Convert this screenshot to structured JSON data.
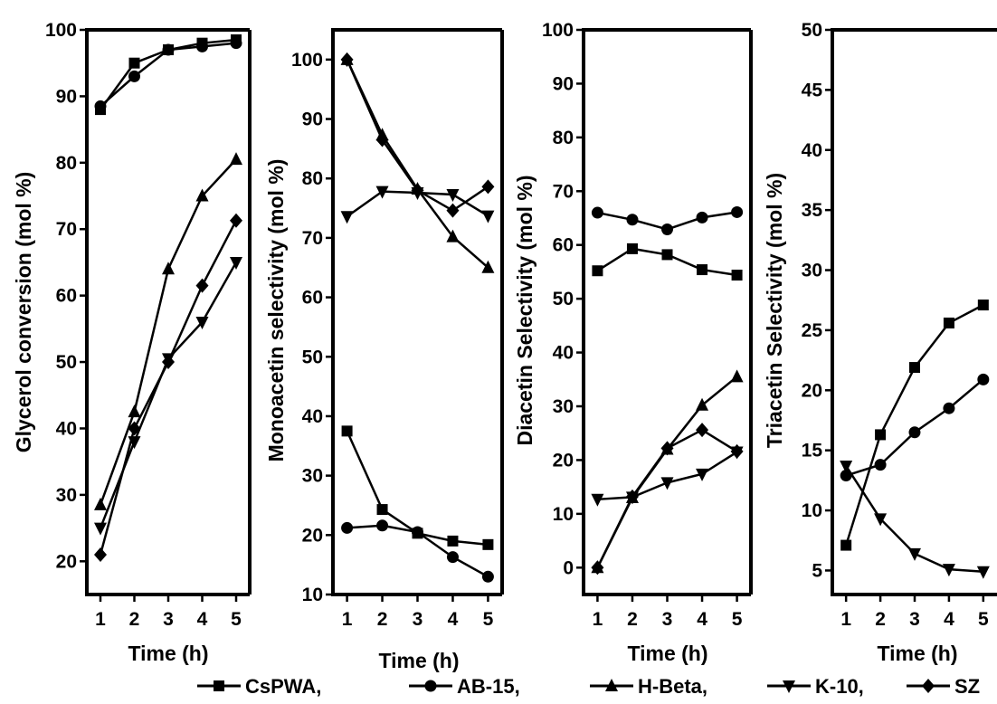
{
  "chart_data": [
    {
      "type": "line",
      "panel": "glycerol-conversion",
      "title": "",
      "xlabel": "Time (h)",
      "ylabel": "Glycerol conversion (mol %)",
      "x": [
        1,
        2,
        3,
        4,
        5
      ],
      "xlim": [
        0.6,
        5.4
      ],
      "ylim": [
        15,
        100
      ],
      "yticks": [
        20,
        30,
        40,
        50,
        60,
        70,
        80,
        90,
        100
      ],
      "series": [
        {
          "name": "CsPWA",
          "marker": "square",
          "values": [
            88,
            95,
            97,
            98,
            98.5
          ]
        },
        {
          "name": "AB-15",
          "marker": "circle",
          "values": [
            88.5,
            93,
            97,
            97.5,
            98
          ]
        },
        {
          "name": "H-Beta",
          "marker": "triangle-up",
          "values": [
            28.5,
            42.5,
            64,
            75,
            80.5
          ]
        },
        {
          "name": "K-10",
          "marker": "triangle-down",
          "values": [
            25,
            38,
            50.5,
            56,
            65
          ]
        },
        {
          "name": "SZ",
          "marker": "diamond",
          "values": [
            21,
            40,
            50,
            61.5,
            71.3
          ]
        }
      ]
    },
    {
      "type": "line",
      "panel": "monoacetin-selectivity",
      "title": "",
      "xlabel": "Time (h)",
      "ylabel": "Monoacetin selectivity (mol %)",
      "x": [
        1,
        2,
        3,
        4,
        5
      ],
      "xlim": [
        0.6,
        5.4
      ],
      "ylim": [
        10,
        105
      ],
      "yticks": [
        10,
        20,
        30,
        40,
        50,
        60,
        70,
        80,
        90,
        100
      ],
      "series": [
        {
          "name": "CsPWA",
          "marker": "square",
          "values": [
            37.5,
            24.3,
            20.3,
            19,
            18.4
          ]
        },
        {
          "name": "AB-15",
          "marker": "circle",
          "values": [
            21.2,
            21.6,
            20.5,
            16.3,
            13
          ]
        },
        {
          "name": "H-Beta",
          "marker": "triangle-up",
          "values": [
            100,
            87.3,
            78.2,
            70.2,
            65
          ]
        },
        {
          "name": "K-10",
          "marker": "triangle-down",
          "values": [
            73.6,
            77.8,
            77.6,
            77.3,
            73.7
          ]
        },
        {
          "name": "SZ",
          "marker": "diamond",
          "values": [
            100,
            86.5,
            78,
            74.6,
            78.6
          ]
        }
      ]
    },
    {
      "type": "line",
      "panel": "diacetin-selectivity",
      "title": "",
      "xlabel": "Time (h)",
      "ylabel": "Diacetin Selectivity (mol %)",
      "x": [
        1,
        2,
        3,
        4,
        5
      ],
      "xlim": [
        0.6,
        5.4
      ],
      "ylim": [
        -5,
        100
      ],
      "yticks": [
        0,
        10,
        20,
        30,
        40,
        50,
        60,
        70,
        80,
        90,
        100
      ],
      "series": [
        {
          "name": "CsPWA",
          "marker": "square",
          "values": [
            55.2,
            59.3,
            58.2,
            55.4,
            54.4
          ]
        },
        {
          "name": "AB-15",
          "marker": "circle",
          "values": [
            66,
            64.7,
            62.9,
            65.1,
            66.1
          ]
        },
        {
          "name": "H-Beta",
          "marker": "triangle-up",
          "values": [
            0,
            13,
            22,
            30.2,
            35.5
          ]
        },
        {
          "name": "K-10",
          "marker": "triangle-down",
          "values": [
            12.7,
            13.1,
            15.8,
            17.4,
            21.5
          ]
        },
        {
          "name": "SZ",
          "marker": "diamond",
          "values": [
            0,
            13.2,
            22.2,
            25.6,
            21.6
          ]
        }
      ]
    },
    {
      "type": "line",
      "panel": "triacetin-selectivity",
      "title": "",
      "xlabel": "Time (h)",
      "ylabel": "Triacetin Selectivity (mol %)",
      "x": [
        1,
        2,
        3,
        4,
        5
      ],
      "xlim": [
        0.6,
        5.4
      ],
      "ylim": [
        3,
        50
      ],
      "yticks": [
        5,
        10,
        15,
        20,
        25,
        30,
        35,
        40,
        45,
        50
      ],
      "series": [
        {
          "name": "CsPWA",
          "marker": "square",
          "values": [
            7.1,
            16.3,
            21.9,
            25.6,
            27.1
          ]
        },
        {
          "name": "AB-15",
          "marker": "circle",
          "values": [
            12.9,
            13.8,
            16.5,
            18.5,
            20.9
          ]
        },
        {
          "name": "K-10",
          "marker": "triangle-down",
          "values": [
            13.7,
            9.3,
            6.4,
            5.1,
            4.9
          ]
        }
      ]
    }
  ],
  "legend": {
    "placement": "bottom",
    "items": [
      {
        "label": "CsPWA,",
        "marker": "square"
      },
      {
        "label": "AB-15,",
        "marker": "circle"
      },
      {
        "label": "H-Beta,",
        "marker": "triangle-up"
      },
      {
        "label": "K-10,",
        "marker": "triangle-down"
      },
      {
        "label": "SZ",
        "marker": "diamond"
      }
    ]
  },
  "colors": {
    "line": "#000000",
    "background": "#ffffff"
  }
}
